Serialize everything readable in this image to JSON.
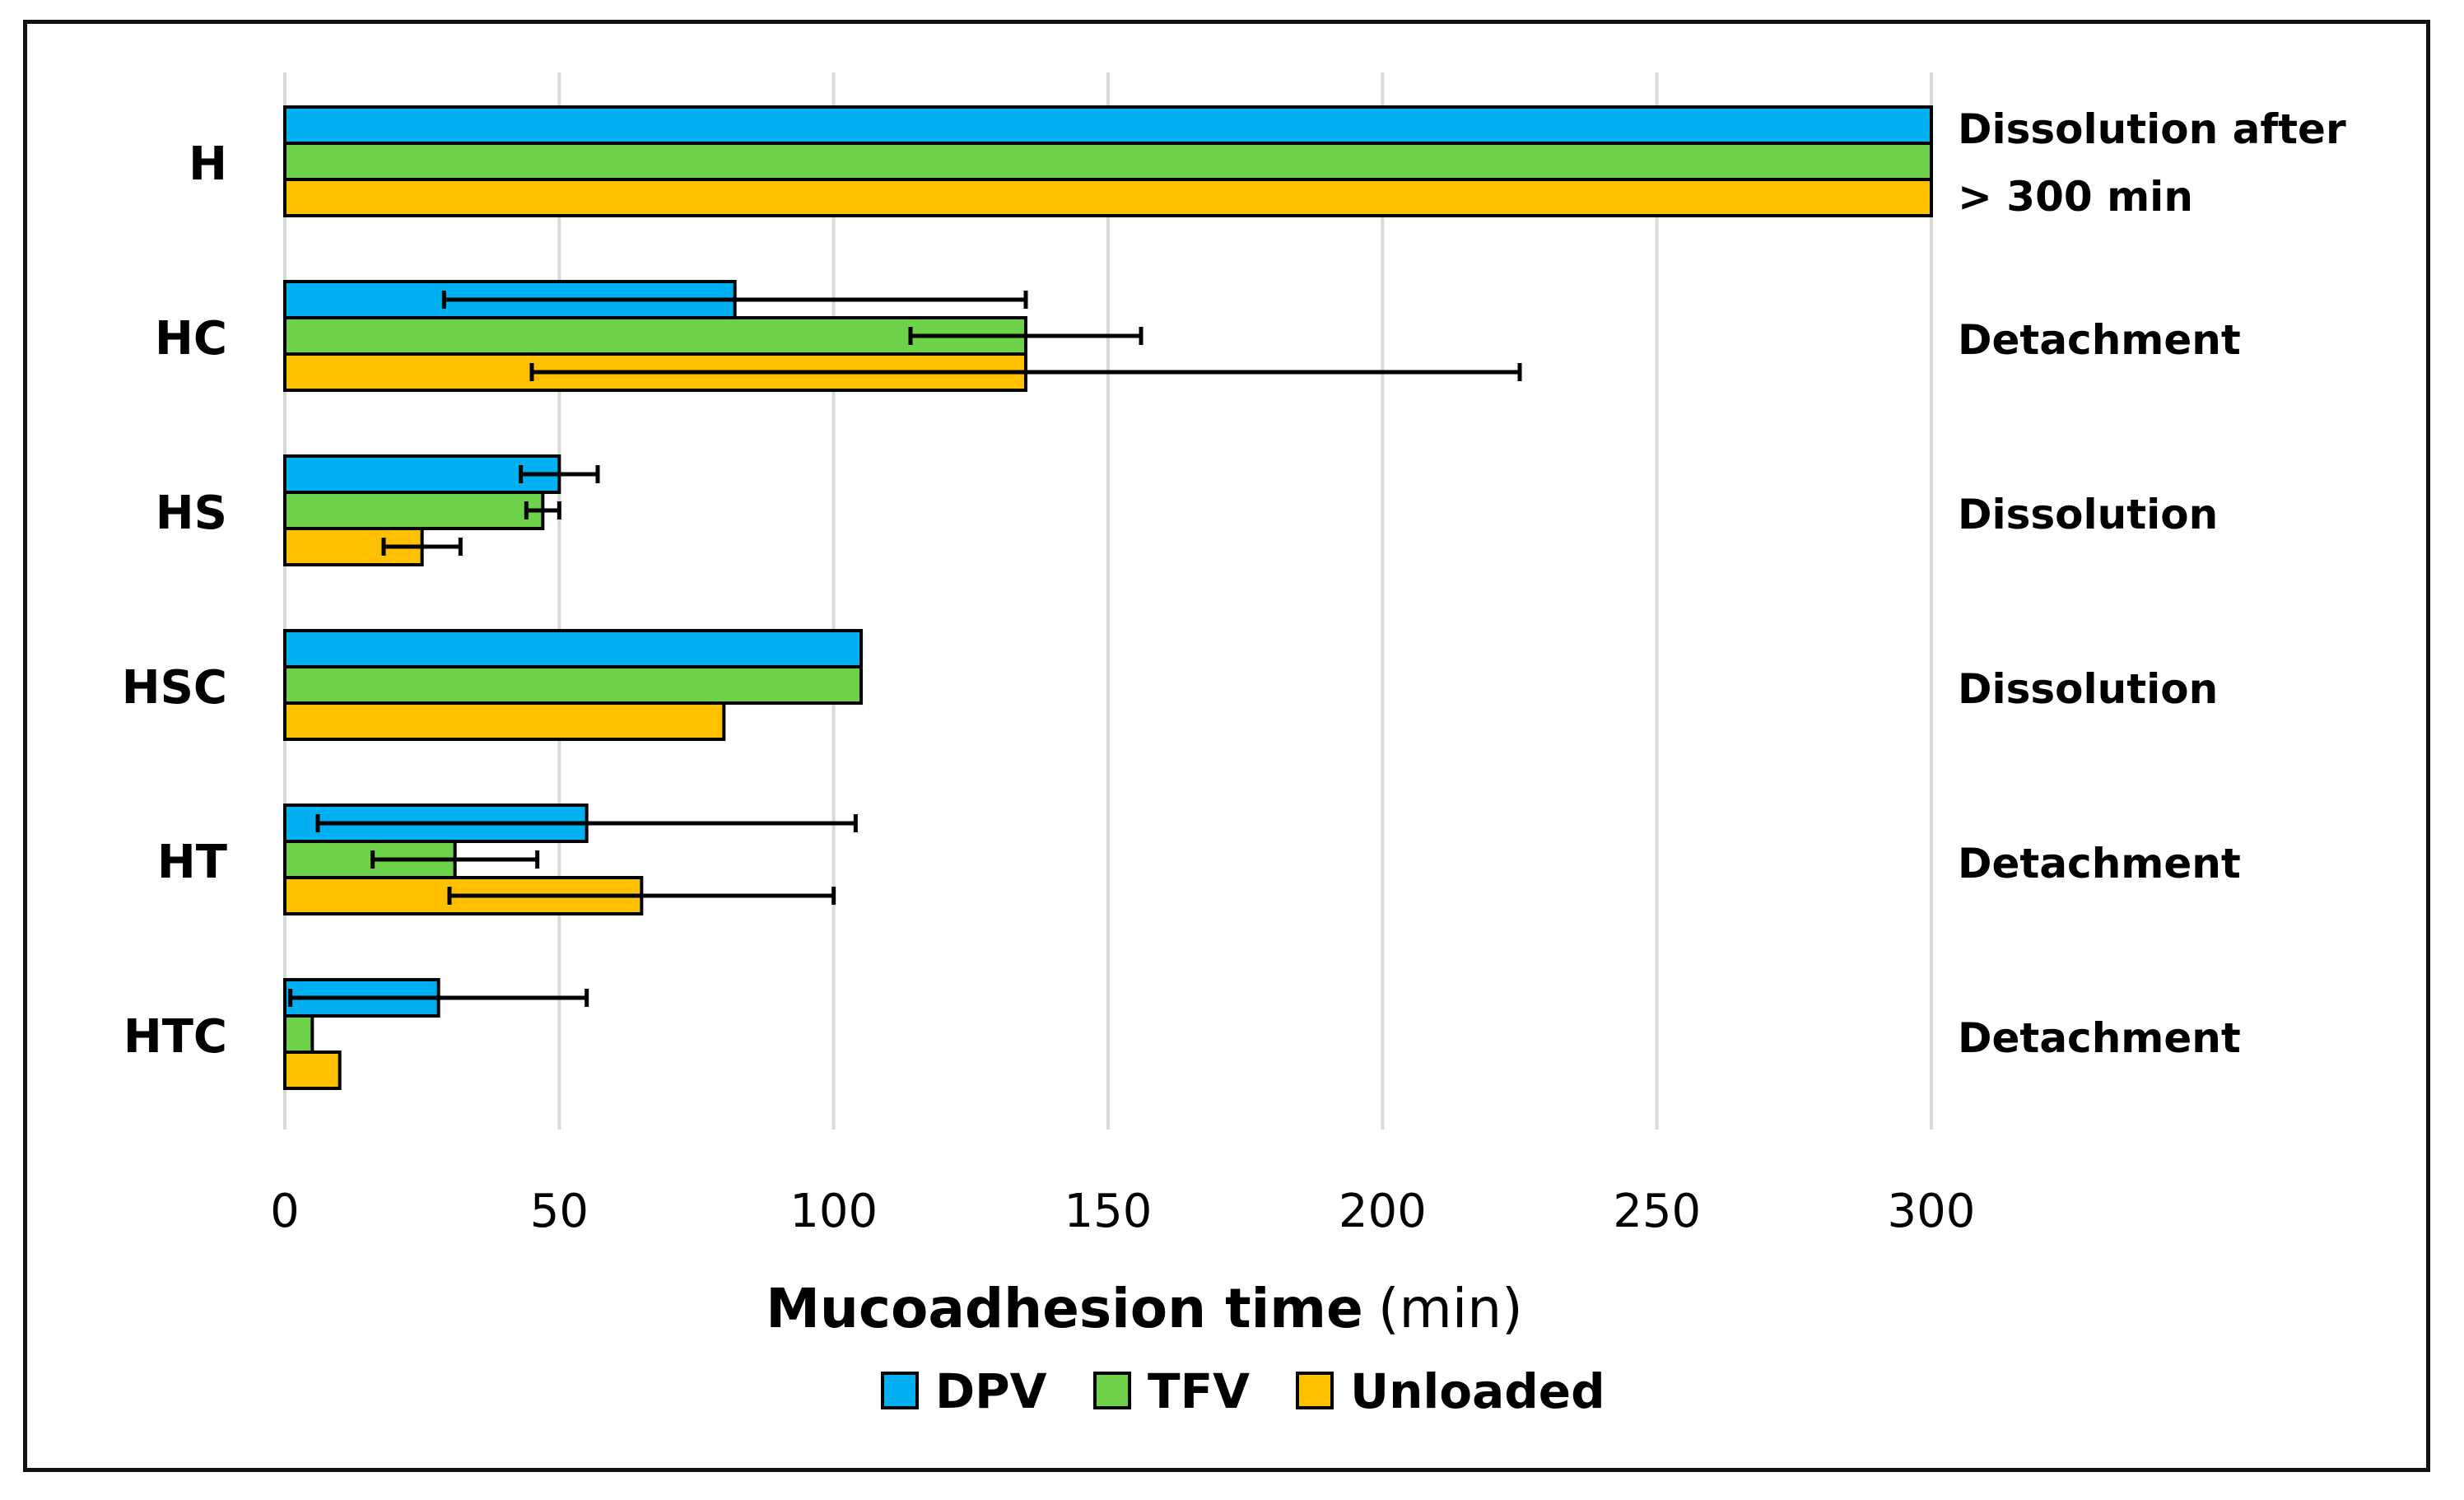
{
  "chart_data": {
    "type": "bar",
    "orientation": "horizontal",
    "title": "",
    "xlabel": "Mucoadhesion time",
    "xlabel_unit": "(min)",
    "ylabel": "",
    "xlim": [
      0,
      300
    ],
    "xticks": [
      "0",
      "50",
      "100",
      "150",
      "200",
      "250",
      "300"
    ],
    "grid": true,
    "legend_position": "bottom",
    "categories": [
      "H",
      "HC",
      "HS",
      "HSC",
      "HT",
      "HTC"
    ],
    "series": [
      {
        "name": "DPV",
        "color": "#00b0f0",
        "values": [
          300,
          82,
          50,
          105,
          55,
          28
        ],
        "errors": [
          null,
          53,
          7,
          null,
          49,
          27
        ]
      },
      {
        "name": "TFV",
        "color": "#6dd149",
        "values": [
          300,
          135,
          47,
          105,
          31,
          5
        ],
        "errors": [
          null,
          21,
          3,
          null,
          15,
          null
        ]
      },
      {
        "name": "Unloaded",
        "color": "#ffc000",
        "values": [
          300,
          135,
          25,
          80,
          65,
          10
        ],
        "errors": [
          null,
          90,
          7,
          null,
          35,
          null
        ]
      }
    ],
    "annotations": [
      [
        "Dissolution after",
        "> 300 min"
      ],
      [
        "Detachment"
      ],
      [
        "Dissolution"
      ],
      [
        "Dissolution"
      ],
      [
        "Detachment"
      ],
      [
        "Detachment"
      ]
    ]
  }
}
